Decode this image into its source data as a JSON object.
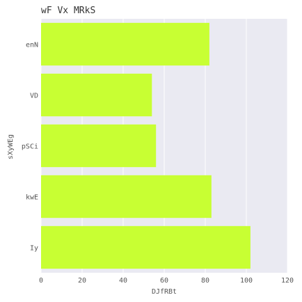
{
  "chart_data": {
    "type": "bar",
    "orientation": "horizontal",
    "title": "wF Vx MRkS",
    "xlabel": "DJfRBt",
    "ylabel": "sXyWEg",
    "categories": [
      "enN",
      "VD",
      "pSCi",
      "kwE",
      "Iy"
    ],
    "values": [
      82,
      54,
      56,
      83,
      102
    ],
    "xlim": [
      0,
      120
    ],
    "xticks": [
      0,
      20,
      40,
      60,
      80,
      100,
      120
    ],
    "grid": true,
    "colors": {
      "bar": "#c8ff33",
      "plot_background": "#eaeaf2",
      "grid": "#ffffff"
    }
  }
}
